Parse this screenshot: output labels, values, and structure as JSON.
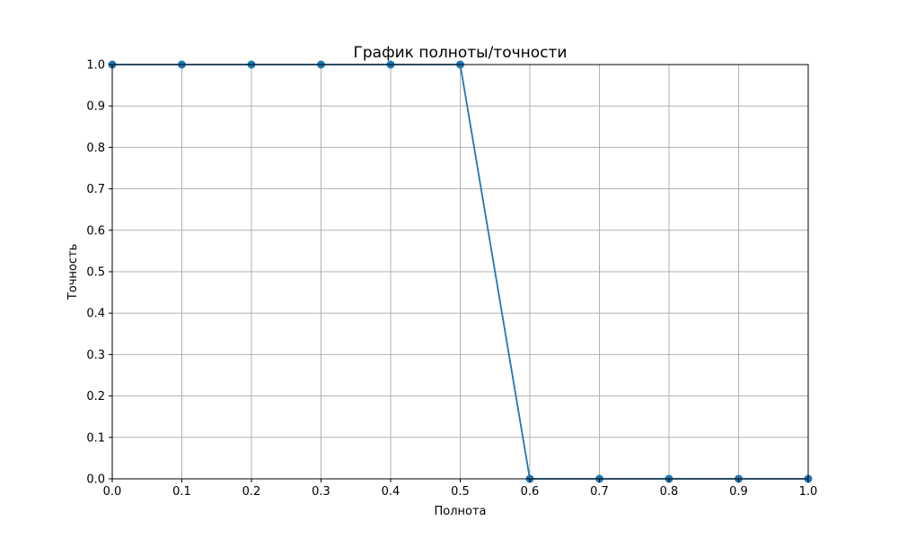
{
  "chart_data": {
    "type": "line",
    "title": "График полноты/точности",
    "xlabel": "Полнота",
    "ylabel": "Точность",
    "xlim": [
      0.0,
      1.0
    ],
    "ylim": [
      0.0,
      1.0
    ],
    "grid": true,
    "x_ticks": [
      "0.0",
      "0.1",
      "0.2",
      "0.3",
      "0.4",
      "0.5",
      "0.6",
      "0.7",
      "0.8",
      "0.9",
      "1.0"
    ],
    "y_ticks": [
      "0.0",
      "0.1",
      "0.2",
      "0.3",
      "0.4",
      "0.5",
      "0.6",
      "0.7",
      "0.8",
      "0.9",
      "1.0"
    ],
    "series": [
      {
        "x": [
          0.0,
          0.1,
          0.2,
          0.3,
          0.4,
          0.5,
          0.6,
          0.7,
          0.8,
          0.9,
          1.0
        ],
        "y": [
          1.0,
          1.0,
          1.0,
          1.0,
          1.0,
          1.0,
          0.0,
          0.0,
          0.0,
          0.0,
          0.0
        ],
        "color": "#1f77b4",
        "marker": "circle"
      }
    ]
  }
}
